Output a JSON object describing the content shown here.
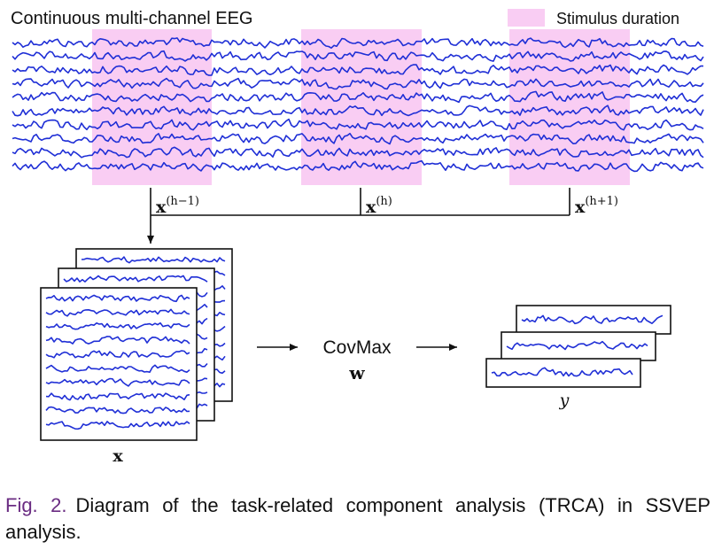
{
  "header": {
    "title": "Continuous multi-channel EEG",
    "legend_label": "Stimulus duration",
    "legend_color": "#f9cdf3"
  },
  "colors": {
    "trace": "#1f2fd6",
    "stimulus": "#f9cdf3",
    "line": "#111111"
  },
  "eeg": {
    "channel_count": 10,
    "stimulus_windows": 3
  },
  "segments": [
    {
      "bold": "x",
      "sup": "(h−1)"
    },
    {
      "bold": "x",
      "sup": "(h)"
    },
    {
      "bold": "x",
      "sup": "(h+1)"
    }
  ],
  "stack": {
    "label": "x"
  },
  "process": {
    "name": "CovMax",
    "weight": "w"
  },
  "output": {
    "label": "y"
  },
  "caption": {
    "label": "Fig. 2.",
    "text": "Diagram of the task-related component analysis (TRCA) in SSVEP analysis."
  }
}
